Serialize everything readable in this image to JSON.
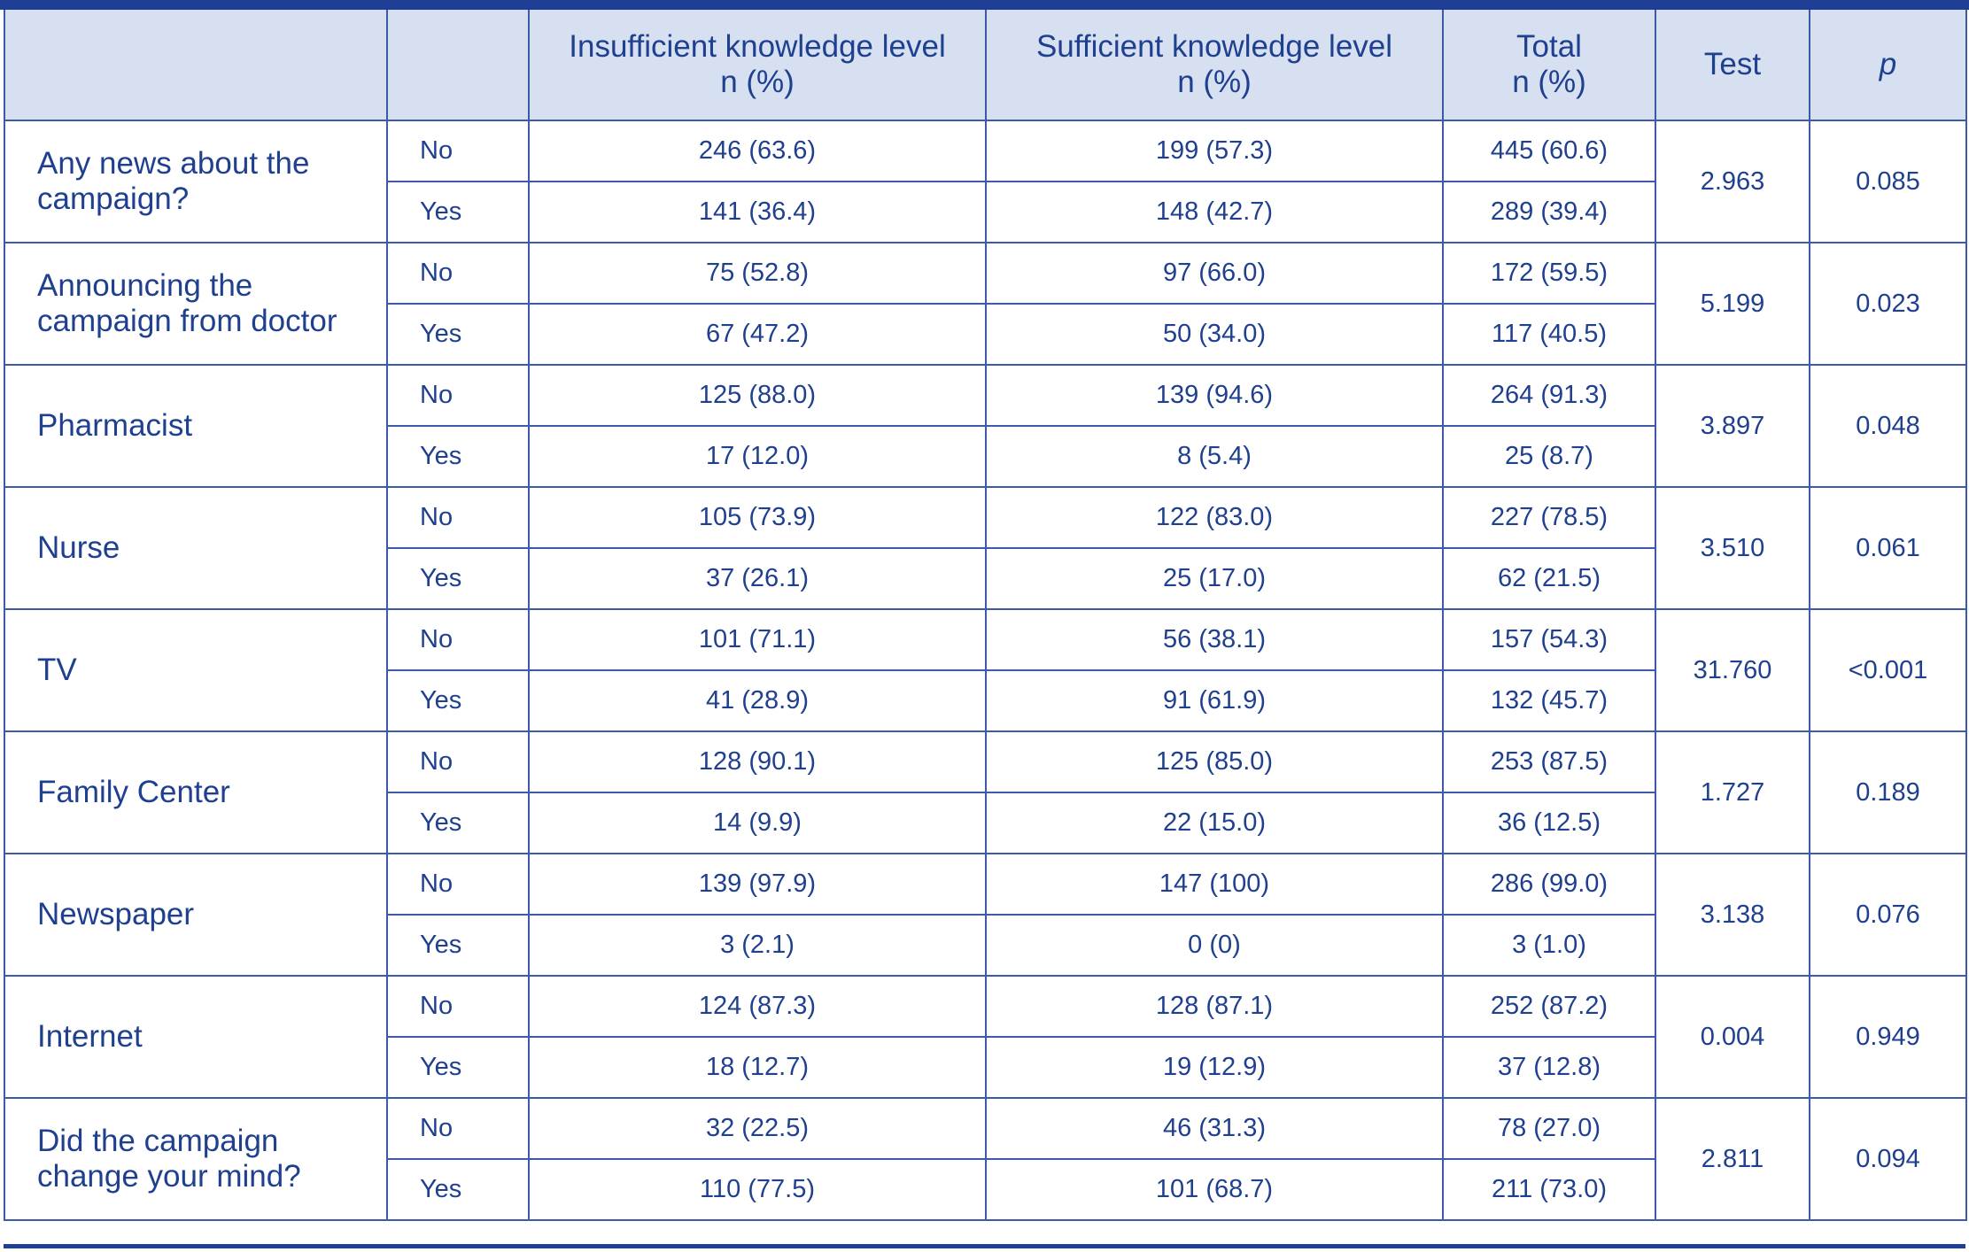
{
  "header": {
    "col0": "",
    "col1": "",
    "insufficient_l1": "Insufficient knowledge level",
    "insufficient_l2": "n (%)",
    "sufficient_l1": "Sufficient knowledge level",
    "sufficient_l2": "n (%)",
    "total_l1": "Total",
    "total_l2": "n (%)",
    "test": "Test",
    "p": "p"
  },
  "rows": [
    {
      "label": "Any news about the campaign?",
      "no": {
        "answer": "No",
        "insufficient": "246 (63.6)",
        "sufficient": "199 (57.3)",
        "total": "445 (60.6)"
      },
      "yes": {
        "answer": "Yes",
        "insufficient": "141 (36.4)",
        "sufficient": "148 (42.7)",
        "total": "289 (39.4)"
      },
      "test": "2.963",
      "p": "0.085"
    },
    {
      "label": "Announcing the campaign from doctor",
      "no": {
        "answer": "No",
        "insufficient": "75 (52.8)",
        "sufficient": "97 (66.0)",
        "total": "172 (59.5)"
      },
      "yes": {
        "answer": "Yes",
        "insufficient": "67 (47.2)",
        "sufficient": "50 (34.0)",
        "total": "117 (40.5)"
      },
      "test": "5.199",
      "p": "0.023"
    },
    {
      "label": "Pharmacist",
      "no": {
        "answer": "No",
        "insufficient": "125 (88.0)",
        "sufficient": "139 (94.6)",
        "total": "264 (91.3)"
      },
      "yes": {
        "answer": "Yes",
        "insufficient": "17 (12.0)",
        "sufficient": "8 (5.4)",
        "total": "25 (8.7)"
      },
      "test": "3.897",
      "p": "0.048"
    },
    {
      "label": "Nurse",
      "no": {
        "answer": "No",
        "insufficient": "105 (73.9)",
        "sufficient": "122 (83.0)",
        "total": "227 (78.5)"
      },
      "yes": {
        "answer": "Yes",
        "insufficient": "37 (26.1)",
        "sufficient": "25 (17.0)",
        "total": "62 (21.5)"
      },
      "test": "3.510",
      "p": "0.061"
    },
    {
      "label": "TV",
      "no": {
        "answer": "No",
        "insufficient": "101 (71.1)",
        "sufficient": "56 (38.1)",
        "total": "157 (54.3)"
      },
      "yes": {
        "answer": "Yes",
        "insufficient": "41 (28.9)",
        "sufficient": "91 (61.9)",
        "total": "132 (45.7)"
      },
      "test": "31.760",
      "p": "<0.001"
    },
    {
      "label": "Family Center",
      "no": {
        "answer": "No",
        "insufficient": "128 (90.1)",
        "sufficient": "125 (85.0)",
        "total": "253 (87.5)"
      },
      "yes": {
        "answer": "Yes",
        "insufficient": "14 (9.9)",
        "sufficient": "22 (15.0)",
        "total": "36 (12.5)"
      },
      "test": "1.727",
      "p": "0.189"
    },
    {
      "label": "Newspaper",
      "no": {
        "answer": "No",
        "insufficient": "139 (97.9)",
        "sufficient": "147 (100)",
        "total": "286 (99.0)"
      },
      "yes": {
        "answer": "Yes",
        "insufficient": "3 (2.1)",
        "sufficient": "0 (0)",
        "total": "3 (1.0)"
      },
      "test": "3.138",
      "p": "0.076"
    },
    {
      "label": "Internet",
      "no": {
        "answer": "No",
        "insufficient": "124 (87.3)",
        "sufficient": "128 (87.1)",
        "total": "252 (87.2)"
      },
      "yes": {
        "answer": "Yes",
        "insufficient": "18 (12.7)",
        "sufficient": "19 (12.9)",
        "total": "37 (12.8)"
      },
      "test": "0.004",
      "p": "0.949"
    },
    {
      "label": "Did the campaign change your mind?",
      "no": {
        "answer": "No",
        "insufficient": "32 (22.5)",
        "sufficient": "46 (31.3)",
        "total": "78 (27.0)"
      },
      "yes": {
        "answer": "Yes",
        "insufficient": "110 (77.5)",
        "sufficient": "101 (68.7)",
        "total": "211 (73.0)"
      },
      "test": "2.811",
      "p": "0.094"
    }
  ]
}
